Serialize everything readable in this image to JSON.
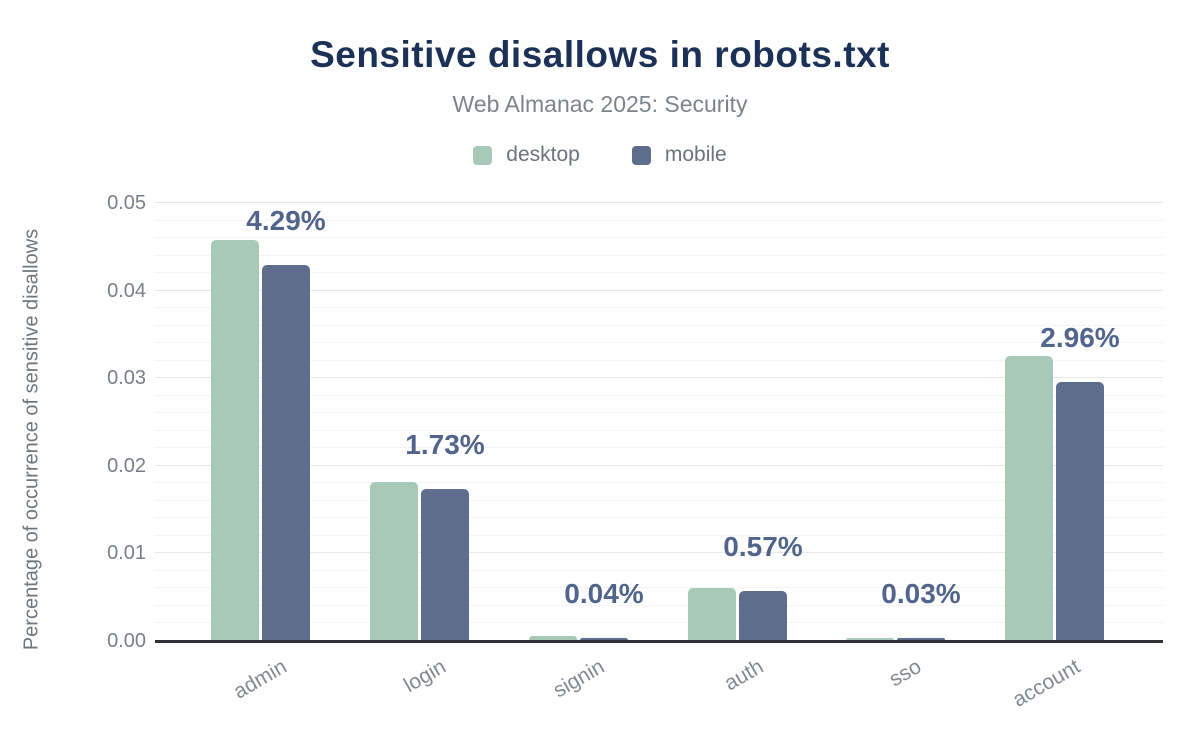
{
  "title": "Sensitive disallows in robots.txt",
  "subtitle": "Web Almanac 2025: Security",
  "legend": {
    "items": [
      {
        "label": "desktop"
      },
      {
        "label": "mobile"
      }
    ]
  },
  "colors": {
    "desktop": "#a9c9b8",
    "mobile": "#5f6d8c",
    "title": "#1b3155",
    "data_label": "#51648c",
    "axis_line": "#2f3136"
  },
  "chart_data": {
    "type": "bar",
    "title": "Sensitive disallows in robots.txt",
    "subtitle": "Web Almanac 2025: Security",
    "categories": [
      "admin",
      "login",
      "signin",
      "auth",
      "sso",
      "account"
    ],
    "series": [
      {
        "name": "desktop",
        "values": [
          0.0458,
          0.0182,
          0.0006,
          0.006,
          0.0004,
          0.0325
        ]
      },
      {
        "name": "mobile",
        "values": [
          0.0429,
          0.0173,
          0.0004,
          0.0057,
          0.0003,
          0.0296
        ]
      }
    ],
    "data_labels": [
      "4.29%",
      "1.73%",
      "0.04%",
      "0.57%",
      "0.03%",
      "2.96%"
    ],
    "data_label_series": "mobile",
    "xlabel": "",
    "ylabel": "Percentage of occurrence of sensitive disallows",
    "ylim": [
      0,
      0.05
    ],
    "y_ticks": [
      "0.00",
      "0.01",
      "0.02",
      "0.03",
      "0.04",
      "0.05"
    ],
    "minor_tick_step": 0.002,
    "grid": true,
    "legend_position": "top"
  }
}
